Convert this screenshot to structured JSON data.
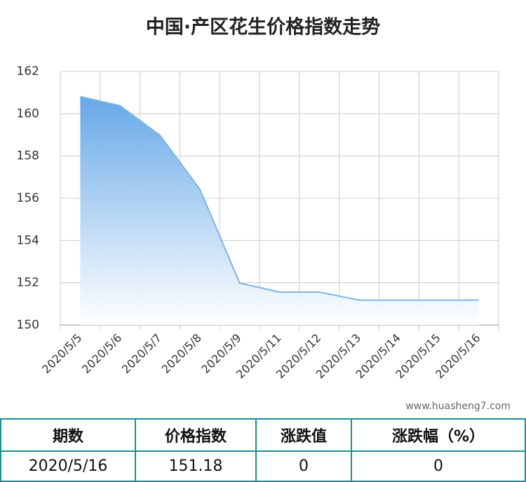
{
  "chart_data": {
    "type": "area",
    "title": "中国·产区花生价格指数走势",
    "categories": [
      "2020/5/5",
      "2020/5/6",
      "2020/5/7",
      "2020/5/8",
      "2020/5/9",
      "2020/5/11",
      "2020/5/12",
      "2020/5/13",
      "2020/5/14",
      "2020/5/15",
      "2020/5/16"
    ],
    "values": [
      160.81,
      160.38,
      158.98,
      156.43,
      151.99,
      151.56,
      151.56,
      151.18,
      151.18,
      151.18,
      151.18
    ],
    "color": "#7ab5ec",
    "ylim": [
      150,
      162
    ],
    "yticks": [
      150,
      152,
      154,
      156,
      158,
      160,
      162
    ],
    "grid": true
  },
  "source": "www.huasheng7.com",
  "table": {
    "headers": [
      "期数",
      "价格指数",
      "涨跌值",
      "涨跌幅（%）"
    ],
    "rows": [
      [
        "2020/5/16",
        "151.18",
        "0",
        "0"
      ]
    ]
  }
}
